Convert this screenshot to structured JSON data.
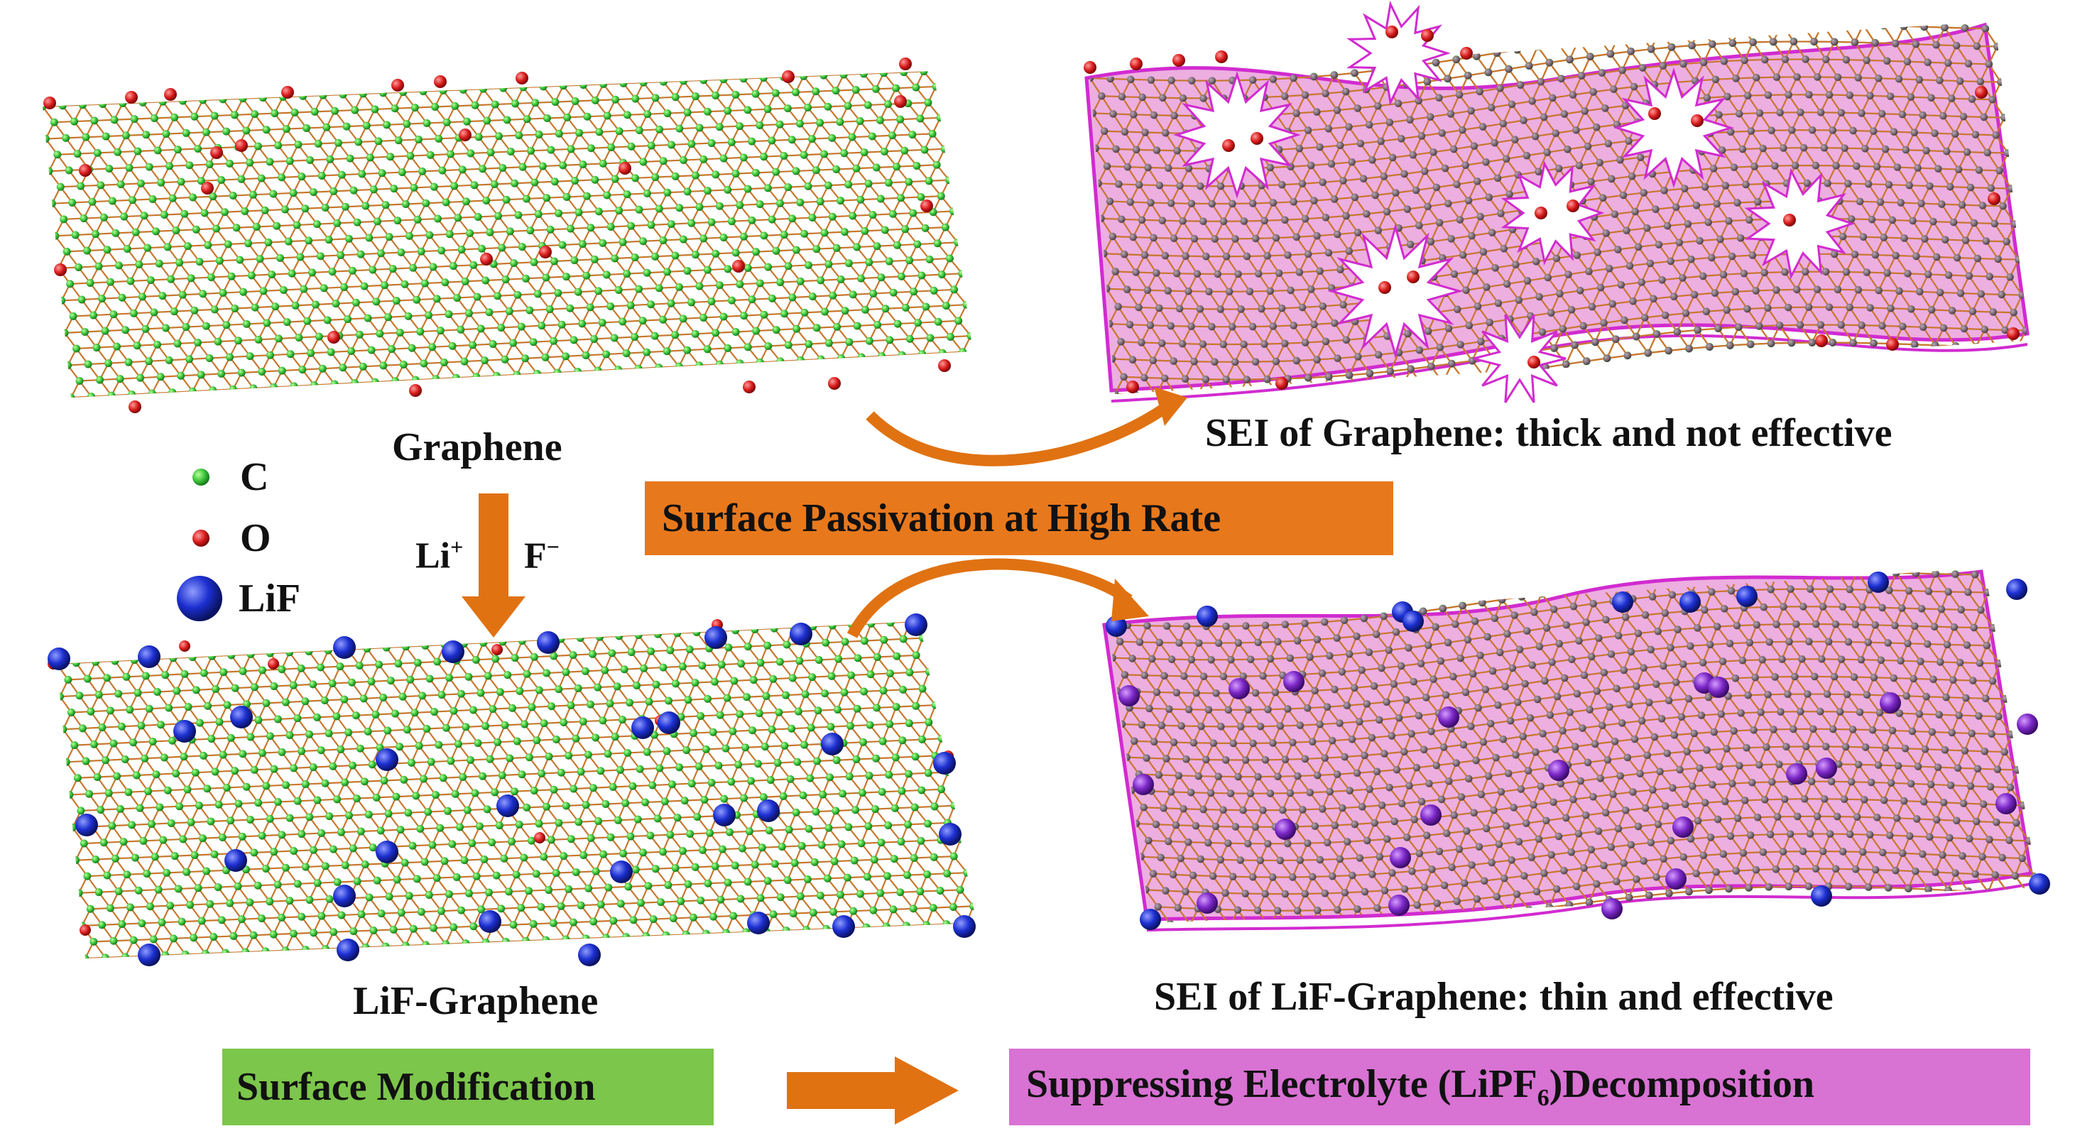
{
  "labels": {
    "graphene": "Graphene",
    "lif_graphene": "LiF-Graphene",
    "sei_graphene": "SEI of Graphene: thick and not effective",
    "sei_lif": "SEI of LiF-Graphene: thin and effective",
    "li_ion": "Li",
    "li_charge": "+",
    "f_ion": "F",
    "f_charge": "−"
  },
  "legend": [
    {
      "symbol": "C",
      "color": "#38c23a",
      "icon": "small-sphere"
    },
    {
      "symbol": "O",
      "color": "#d81b1b",
      "icon": "small-sphere"
    },
    {
      "symbol": "LiF",
      "color": "#1c2fd0",
      "icon": "large-sphere"
    }
  ],
  "boxes": {
    "passivation": "Surface Passivation at High Rate",
    "modification": "Surface Modification",
    "suppressing_pre": "Suppressing Electrolyte (LiPF",
    "suppressing_sub": "6",
    "suppressing_post": ")Decomposition"
  },
  "colors": {
    "carbon": "#38c23a",
    "bond": "#c8772e",
    "oxygen": "#d81b1b",
    "lif": "#1c2fd0",
    "sei_fill": "#e89ad8",
    "sei_edge": "#d12bd0",
    "arrow": "#e07212",
    "box_orange": "#e8781c",
    "box_green": "#7cc64b",
    "box_pink": "#d872d3"
  }
}
